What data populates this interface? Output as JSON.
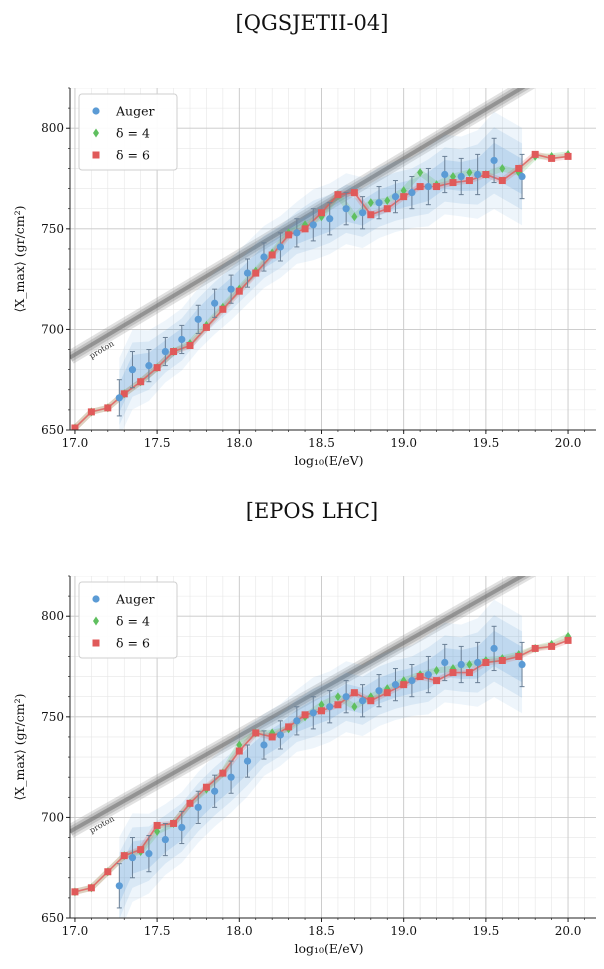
{
  "colors": {
    "auger": "#5b9bd5",
    "delta4": "#5fbf5f",
    "delta6": "#e05a5a",
    "proton": "#888888"
  },
  "chart_data": [
    {
      "type": "scatter",
      "title": "[QGSJETII-04]",
      "xlabel": "log₁₀(E/eV)",
      "ylabel": "⟨X_max⟩ (gr/cm²)",
      "xlim": [
        16.97,
        20.17
      ],
      "ylim": [
        650,
        820
      ],
      "xticks": [
        "17.0",
        "17.5",
        "18.0",
        "18.5",
        "19.0",
        "19.5",
        "20.0"
      ],
      "yticks": [
        "650",
        "700",
        "750",
        "800"
      ],
      "grid": true,
      "legend_position": "top-left",
      "legend": [
        "Auger",
        "δ = 4",
        "δ = 6"
      ],
      "annotation": "proton",
      "proton_line": {
        "x": [
          16.97,
          19.8
        ],
        "y": [
          686,
          824
        ]
      },
      "series": [
        {
          "name": "Auger",
          "x": [
            17.27,
            17.35,
            17.45,
            17.55,
            17.65,
            17.75,
            17.85,
            17.95,
            18.05,
            18.15,
            18.25,
            18.35,
            18.45,
            18.55,
            18.65,
            18.75,
            18.85,
            18.95,
            19.05,
            19.15,
            19.25,
            19.35,
            19.45,
            19.55,
            19.72
          ],
          "y": [
            666,
            680,
            682,
            689,
            695,
            705,
            713,
            720,
            728,
            736,
            741,
            748,
            752,
            755,
            760,
            758,
            763,
            766,
            768,
            771,
            777,
            776,
            777,
            784,
            776
          ],
          "err": [
            9,
            9,
            8,
            7,
            7,
            7,
            7,
            7,
            7,
            7,
            7,
            7,
            8,
            8,
            8,
            8,
            8,
            8,
            8,
            9,
            9,
            9,
            10,
            11,
            11
          ]
        },
        {
          "name": "δ = 4",
          "x": [
            17.0,
            17.1,
            17.2,
            17.3,
            17.4,
            17.5,
            17.6,
            17.7,
            17.8,
            17.9,
            18.0,
            18.1,
            18.2,
            18.3,
            18.4,
            18.5,
            18.6,
            18.7,
            18.8,
            18.9,
            19.0,
            19.1,
            19.2,
            19.3,
            19.4,
            19.5,
            19.6,
            19.7,
            19.8,
            19.9,
            20.0
          ],
          "y": [
            651,
            659,
            661,
            668,
            674,
            681,
            689,
            693,
            702,
            711,
            720,
            729,
            738,
            748,
            752,
            756,
            767,
            756,
            763,
            764,
            769,
            778,
            772,
            776,
            778,
            777,
            780,
            778,
            786,
            786,
            787
          ]
        },
        {
          "name": "δ = 6",
          "x": [
            17.0,
            17.1,
            17.2,
            17.3,
            17.4,
            17.5,
            17.6,
            17.7,
            17.8,
            17.9,
            18.0,
            18.1,
            18.2,
            18.3,
            18.4,
            18.5,
            18.6,
            18.7,
            18.8,
            18.9,
            19.0,
            19.1,
            19.2,
            19.3,
            19.4,
            19.5,
            19.6,
            19.7,
            19.8,
            19.9,
            20.0
          ],
          "y": [
            651,
            659,
            661,
            668,
            674,
            681,
            689,
            692,
            701,
            710,
            719,
            728,
            737,
            747,
            750,
            758,
            767,
            768,
            757,
            760,
            766,
            771,
            771,
            773,
            774,
            777,
            774,
            780,
            787,
            785,
            786
          ]
        }
      ]
    },
    {
      "type": "scatter",
      "title": "[EPOS LHC]",
      "xlabel": "log₁₀(E/eV)",
      "ylabel": "⟨X_max⟩ (gr/cm²)",
      "xlim": [
        16.97,
        20.17
      ],
      "ylim": [
        650,
        820
      ],
      "xticks": [
        "17.0",
        "17.5",
        "18.0",
        "18.5",
        "19.0",
        "19.5",
        "20.0"
      ],
      "yticks": [
        "650",
        "700",
        "750",
        "800"
      ],
      "grid": true,
      "legend_position": "top-left",
      "legend": [
        "Auger",
        "δ = 4",
        "δ = 6"
      ],
      "annotation": "proton",
      "proton_line": {
        "x": [
          16.97,
          19.85
        ],
        "y": [
          693,
          826
        ]
      },
      "series": [
        {
          "name": "Auger",
          "x": [
            17.27,
            17.35,
            17.45,
            17.55,
            17.65,
            17.75,
            17.85,
            17.95,
            18.05,
            18.15,
            18.25,
            18.35,
            18.45,
            18.55,
            18.65,
            18.75,
            18.85,
            18.95,
            19.05,
            19.15,
            19.25,
            19.35,
            19.45,
            19.55,
            19.72
          ],
          "y": [
            666,
            680,
            682,
            689,
            695,
            705,
            713,
            720,
            728,
            736,
            741,
            748,
            752,
            755,
            760,
            758,
            763,
            766,
            768,
            771,
            777,
            776,
            777,
            784,
            776
          ],
          "err": [
            11,
            10,
            9,
            8,
            8,
            8,
            8,
            8,
            8,
            7,
            7,
            7,
            8,
            8,
            8,
            8,
            8,
            8,
            8,
            9,
            9,
            9,
            10,
            11,
            11
          ]
        },
        {
          "name": "δ = 4",
          "x": [
            17.0,
            17.1,
            17.2,
            17.3,
            17.4,
            17.5,
            17.6,
            17.7,
            17.8,
            17.9,
            18.0,
            18.1,
            18.2,
            18.3,
            18.4,
            18.5,
            18.6,
            18.7,
            18.8,
            18.9,
            19.0,
            19.1,
            19.2,
            19.3,
            19.4,
            19.5,
            19.6,
            19.7,
            19.8,
            19.9,
            20.0
          ],
          "y": [
            663,
            665,
            673,
            681,
            683,
            693,
            697,
            707,
            714,
            722,
            736,
            742,
            742,
            744,
            750,
            756,
            760,
            755,
            760,
            764,
            768,
            771,
            773,
            774,
            776,
            778,
            779,
            781,
            784,
            786,
            790
          ]
        },
        {
          "name": "δ = 6",
          "x": [
            17.0,
            17.1,
            17.2,
            17.3,
            17.4,
            17.5,
            17.6,
            17.7,
            17.8,
            17.9,
            18.0,
            18.1,
            18.2,
            18.3,
            18.4,
            18.5,
            18.6,
            18.7,
            18.8,
            18.9,
            19.0,
            19.1,
            19.2,
            19.3,
            19.4,
            19.5,
            19.6,
            19.7,
            19.8,
            19.9,
            20.0
          ],
          "y": [
            663,
            665,
            673,
            681,
            684,
            696,
            697,
            707,
            715,
            722,
            733,
            742,
            740,
            745,
            751,
            753,
            756,
            762,
            758,
            762,
            766,
            770,
            768,
            772,
            772,
            777,
            778,
            780,
            784,
            785,
            788
          ]
        }
      ]
    }
  ]
}
